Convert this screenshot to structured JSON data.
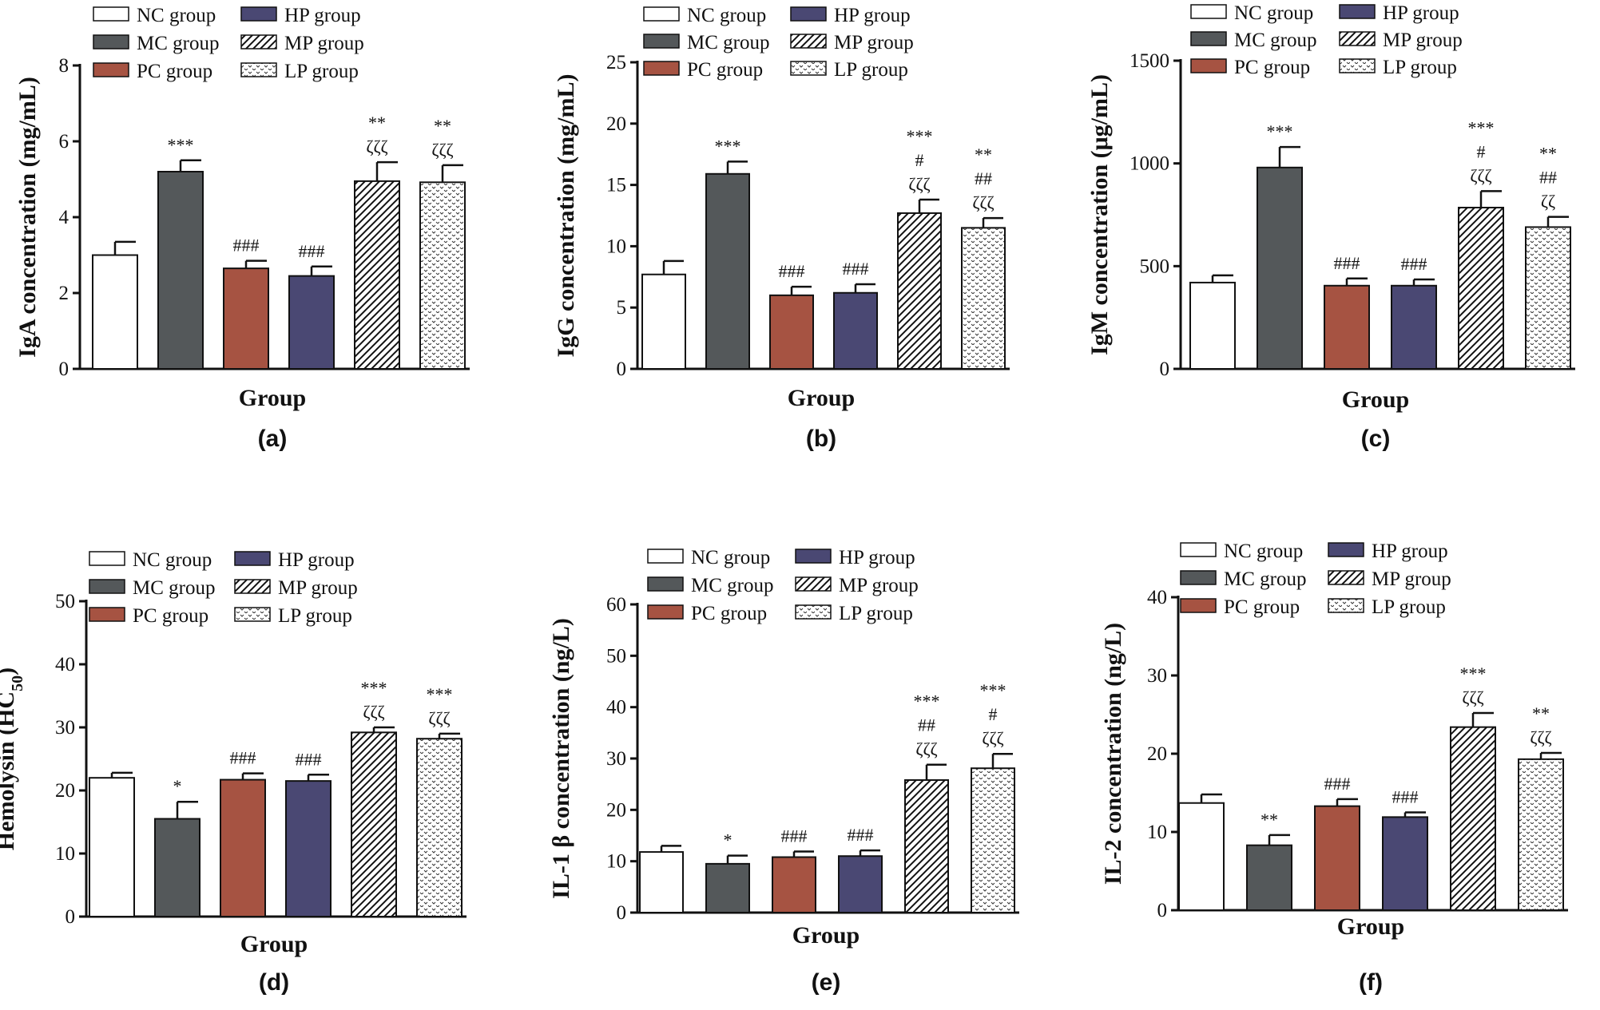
{
  "groups": [
    "NC group",
    "MC group",
    "PC group",
    "HP group",
    "MP group",
    "LP group"
  ],
  "group_styles": [
    {
      "fill": "#ffffff",
      "pattern": "none"
    },
    {
      "fill": "#54585a",
      "pattern": "none"
    },
    {
      "fill": "#a65342",
      "pattern": "none"
    },
    {
      "fill": "#4a4873",
      "pattern": "none"
    },
    {
      "fill": "#ffffff",
      "pattern": "diagonal"
    },
    {
      "fill": "#ffffff",
      "pattern": "dots"
    }
  ],
  "chart_data": [
    {
      "type": "bar",
      "panel_label": "(a)",
      "ylabel": "IgA concentration (mg/mL)",
      "xlabel": "Group",
      "ylim": [
        0,
        8
      ],
      "yticks": [
        "0",
        "2",
        "4",
        "6",
        "8"
      ],
      "categories": [
        "NC group",
        "MC group",
        "PC group",
        "HP group",
        "MP group",
        "LP group"
      ],
      "values": [
        3.0,
        5.2,
        2.65,
        2.45,
        4.95,
        4.92
      ],
      "errors": [
        0.35,
        0.3,
        0.2,
        0.25,
        0.5,
        0.45
      ],
      "annotations": [
        [],
        [
          "***"
        ],
        [
          "###"
        ],
        [
          "###"
        ],
        [
          "**",
          "ζζζ"
        ],
        [
          "**",
          "ζζζ"
        ]
      ]
    },
    {
      "type": "bar",
      "panel_label": "(b)",
      "ylabel": "IgG concentration (mg/mL)",
      "xlabel": "Group",
      "ylim": [
        0,
        25
      ],
      "yticks": [
        "0",
        "5",
        "10",
        "15",
        "20",
        "25"
      ],
      "categories": [
        "NC group",
        "MC group",
        "PC group",
        "HP group",
        "MP group",
        "LP group"
      ],
      "values": [
        7.7,
        15.9,
        6.0,
        6.2,
        12.7,
        11.5
      ],
      "errors": [
        1.1,
        1.0,
        0.7,
        0.7,
        1.1,
        0.8
      ],
      "annotations": [
        [],
        [
          "***"
        ],
        [
          "###"
        ],
        [
          "###"
        ],
        [
          "***",
          "#",
          "ζζζ"
        ],
        [
          "**",
          "##",
          "ζζζ"
        ]
      ]
    },
    {
      "type": "bar",
      "panel_label": "(c)",
      "ylabel": "IgM concentration (μg/mL)",
      "xlabel": "Group",
      "ylim": [
        0,
        1500
      ],
      "yticks": [
        "0",
        "500",
        "1000",
        "1500"
      ],
      "categories": [
        "NC group",
        "MC group",
        "PC group",
        "HP group",
        "MP group",
        "LP group"
      ],
      "values": [
        420,
        980,
        405,
        405,
        785,
        690
      ],
      "errors": [
        35,
        100,
        35,
        30,
        80,
        50
      ],
      "annotations": [
        [],
        [
          "***"
        ],
        [
          "###"
        ],
        [
          "###"
        ],
        [
          "***",
          "#",
          "ζζζ"
        ],
        [
          "**",
          "##",
          "ζζ"
        ]
      ]
    },
    {
      "type": "bar",
      "panel_label": "(d)",
      "ylabel": "Hemolysin (HC",
      "ylabel_sub": "50",
      "ylabel_end": ")",
      "xlabel": "Group",
      "ylim": [
        0,
        50
      ],
      "yticks": [
        "0",
        "10",
        "20",
        "30",
        "40",
        "50"
      ],
      "categories": [
        "NC group",
        "MC group",
        "PC group",
        "HP group",
        "MP group",
        "LP group"
      ],
      "values": [
        22.0,
        15.5,
        21.7,
        21.5,
        29.2,
        28.2
      ],
      "errors": [
        0.8,
        2.7,
        1.0,
        1.0,
        0.8,
        0.8
      ],
      "annotations": [
        [],
        [
          "*"
        ],
        [
          "###"
        ],
        [
          "###"
        ],
        [
          "***",
          "ζζζ"
        ],
        [
          "***",
          "ζζζ"
        ]
      ]
    },
    {
      "type": "bar",
      "panel_label": "(e)",
      "ylabel": "IL-1 β concentration (ng/L)",
      "xlabel": "Group",
      "ylim": [
        0,
        60
      ],
      "yticks": [
        "0",
        "10",
        "20",
        "30",
        "40",
        "50",
        "60"
      ],
      "categories": [
        "NC group",
        "MC group",
        "PC group",
        "HP group",
        "MP group",
        "LP group"
      ],
      "values": [
        11.8,
        9.5,
        10.8,
        11.0,
        25.8,
        28.1
      ],
      "errors": [
        1.2,
        1.6,
        1.1,
        1.1,
        3.0,
        2.8
      ],
      "annotations": [
        [],
        [
          "*"
        ],
        [
          "###"
        ],
        [
          "###"
        ],
        [
          "***",
          "##",
          "ζζζ"
        ],
        [
          "***",
          "#",
          "ζζζ"
        ]
      ]
    },
    {
      "type": "bar",
      "panel_label": "(f)",
      "ylabel": "IL-2 concentration (ng/L)",
      "xlabel": "Group",
      "ylim": [
        0,
        40
      ],
      "yticks": [
        "0",
        "10",
        "20",
        "30",
        "40"
      ],
      "categories": [
        "NC group",
        "MC group",
        "PC group",
        "HP group",
        "MP group",
        "LP group"
      ],
      "values": [
        13.7,
        8.3,
        13.3,
        11.9,
        23.4,
        19.3
      ],
      "errors": [
        1.1,
        1.3,
        0.9,
        0.6,
        1.8,
        0.8
      ],
      "annotations": [
        [],
        [
          "**"
        ],
        [
          "###"
        ],
        [
          "###"
        ],
        [
          "***",
          "ζζζ"
        ],
        [
          "**",
          "ζζζ"
        ]
      ]
    }
  ]
}
